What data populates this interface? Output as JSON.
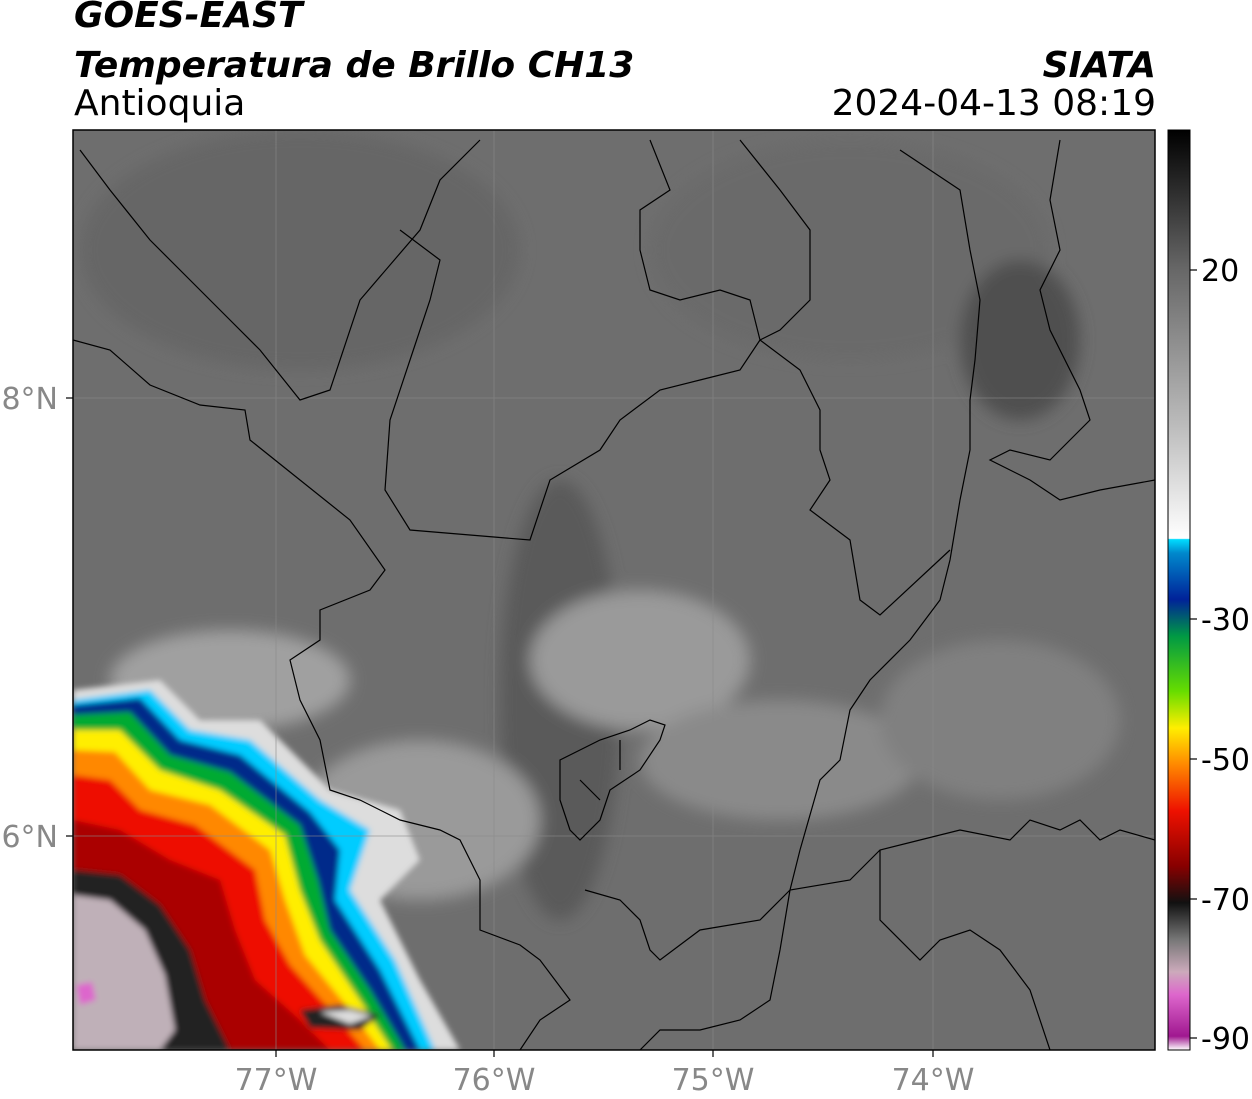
{
  "header": {
    "satellite": "GOES-EAST",
    "product": "Temperatura de Brillo CH13",
    "region": "Antioquia",
    "brand": "SIATA",
    "datetime": "2024-04-13 08:19"
  },
  "map": {
    "lon_ticks": [
      "77°W",
      "76°W",
      "75°W",
      "74°W"
    ],
    "lat_ticks": [
      "8°N",
      "6°N"
    ],
    "colors": {
      "background": "#6e6e6e",
      "border": "#000000",
      "gridline": "#8a8a8a",
      "tick_label": "#888888"
    }
  },
  "colorbar": {
    "ticks": [
      "20",
      "-30",
      "-50",
      "-70",
      "-90"
    ],
    "stops": [
      "#ffffff",
      "#dd88cc",
      "#c040a8",
      "#111111",
      "#555555",
      "#990000",
      "#ee2200",
      "#ff8800",
      "#ffee00",
      "#88ee00",
      "#00aa44",
      "#0033aa",
      "#00ddff",
      "#ffffff",
      "#999999",
      "#444444",
      "#000000"
    ]
  }
}
